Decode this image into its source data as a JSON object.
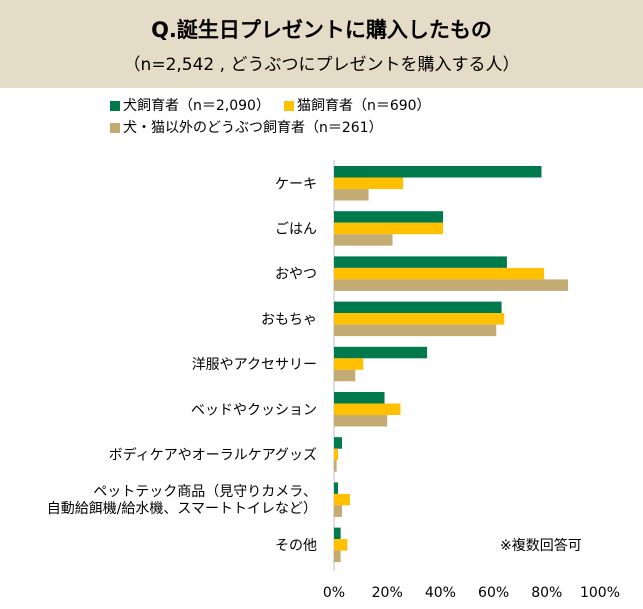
{
  "header": {
    "title": "Q.誕生日プレゼントに購入したもの",
    "subtitle": "（n=2,542 , どうぶつにプレゼントを購入する人）"
  },
  "note": "※複数回答可",
  "chart_data": {
    "type": "bar",
    "orientation": "horizontal",
    "categories": [
      [
        "ケーキ"
      ],
      [
        "ごはん"
      ],
      [
        "おやつ"
      ],
      [
        "おもちゃ"
      ],
      [
        "洋服やアクセサリー"
      ],
      [
        "ベッドやクッション"
      ],
      [
        "ボディケアやオーラルケアグッズ"
      ],
      [
        "ペットテック商品（見守りカメラ、",
        "自動給餌機/給水機、スマートトイレなど）"
      ],
      [
        "その他"
      ]
    ],
    "series": [
      {
        "name": "犬飼育者（n＝2,090）",
        "color": "#007a4d",
        "values": [
          78,
          41,
          65,
          63,
          35,
          19,
          3,
          1.5,
          2.5
        ]
      },
      {
        "name": "猫飼育者（n＝690）",
        "color": "#ffc000",
        "values": [
          26,
          41,
          79,
          64,
          11,
          25,
          1.5,
          6,
          5
        ]
      },
      {
        "name": "犬・猫以外のどうぶつ飼育者（n＝261）",
        "color": "#c4ab74",
        "values": [
          13,
          22,
          88,
          61,
          8,
          20,
          1,
          3,
          2.5
        ]
      }
    ],
    "xlim": [
      0,
      100
    ],
    "xticks": [
      0,
      20,
      40,
      60,
      80,
      100
    ],
    "tick_suffix": "%",
    "grid": false,
    "legend_position": "top"
  }
}
